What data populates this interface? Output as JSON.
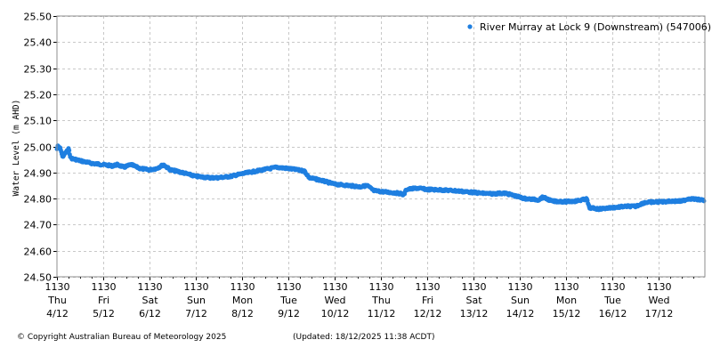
{
  "chart_data": {
    "type": "scatter",
    "title": "",
    "xlabel": "",
    "ylabel": "Water Level (m AHD)",
    "ylim": [
      24.5,
      25.5
    ],
    "yticks": [
      "25.50",
      "25.40",
      "25.30",
      "25.20",
      "25.10",
      "25.00",
      "24.90",
      "24.80",
      "24.70",
      "24.60",
      "24.50"
    ],
    "grid": true,
    "legend_position": "top-right",
    "x_ticks": [
      {
        "time": "1130",
        "day": "Thu",
        "date": "4/12"
      },
      {
        "time": "1130",
        "day": "Fri",
        "date": "5/12"
      },
      {
        "time": "1130",
        "day": "Sat",
        "date": "6/12"
      },
      {
        "time": "1130",
        "day": "Sun",
        "date": "7/12"
      },
      {
        "time": "1130",
        "day": "Mon",
        "date": "8/12"
      },
      {
        "time": "1130",
        "day": "Tue",
        "date": "9/12"
      },
      {
        "time": "1130",
        "day": "Wed",
        "date": "10/12"
      },
      {
        "time": "1130",
        "day": "Thu",
        "date": "11/12"
      },
      {
        "time": "1130",
        "day": "Fri",
        "date": "12/12"
      },
      {
        "time": "1130",
        "day": "Sat",
        "date": "13/12"
      },
      {
        "time": "1130",
        "day": "Sun",
        "date": "14/12"
      },
      {
        "time": "1130",
        "day": "Mon",
        "date": "15/12"
      },
      {
        "time": "1130",
        "day": "Tue",
        "date": "16/12"
      },
      {
        "time": "1130",
        "day": "Wed",
        "date": "17/12"
      }
    ],
    "series": [
      {
        "name": "River Murray at Lock 9 (Downstream) (547006)",
        "color": "#1f7fe0",
        "x_unit": "days since Thu 4/12 11:30",
        "points": [
          [
            0.0,
            24.99
          ],
          [
            0.02,
            25.0
          ],
          [
            0.08,
            24.99
          ],
          [
            0.12,
            24.96
          ],
          [
            0.25,
            24.99
          ],
          [
            0.3,
            24.955
          ],
          [
            0.5,
            24.945
          ],
          [
            0.75,
            24.935
          ],
          [
            1.0,
            24.93
          ],
          [
            1.2,
            24.925
          ],
          [
            1.3,
            24.93
          ],
          [
            1.45,
            24.92
          ],
          [
            1.6,
            24.93
          ],
          [
            1.8,
            24.915
          ],
          [
            2.0,
            24.91
          ],
          [
            2.15,
            24.915
          ],
          [
            2.3,
            24.93
          ],
          [
            2.45,
            24.91
          ],
          [
            2.7,
            24.9
          ],
          [
            3.0,
            24.885
          ],
          [
            3.3,
            24.88
          ],
          [
            3.5,
            24.88
          ],
          [
            3.75,
            24.885
          ],
          [
            4.0,
            24.895
          ],
          [
            4.3,
            24.905
          ],
          [
            4.6,
            24.915
          ],
          [
            4.75,
            24.92
          ],
          [
            5.0,
            24.915
          ],
          [
            5.2,
            24.91
          ],
          [
            5.35,
            24.905
          ],
          [
            5.45,
            24.88
          ],
          [
            5.7,
            24.87
          ],
          [
            6.0,
            24.855
          ],
          [
            6.3,
            24.85
          ],
          [
            6.55,
            24.845
          ],
          [
            6.7,
            24.85
          ],
          [
            6.85,
            24.83
          ],
          [
            7.1,
            24.825
          ],
          [
            7.4,
            24.82
          ],
          [
            7.5,
            24.815
          ],
          [
            7.55,
            24.835
          ],
          [
            7.8,
            24.84
          ],
          [
            8.0,
            24.835
          ],
          [
            8.3,
            24.833
          ],
          [
            8.6,
            24.83
          ],
          [
            8.9,
            24.825
          ],
          [
            9.2,
            24.82
          ],
          [
            9.4,
            24.818
          ],
          [
            9.55,
            24.82
          ],
          [
            9.7,
            24.82
          ],
          [
            9.9,
            24.81
          ],
          [
            10.1,
            24.8
          ],
          [
            10.4,
            24.795
          ],
          [
            10.5,
            24.805
          ],
          [
            10.7,
            24.79
          ],
          [
            11.0,
            24.788
          ],
          [
            11.2,
            24.79
          ],
          [
            11.35,
            24.795
          ],
          [
            11.45,
            24.798
          ],
          [
            11.5,
            24.765
          ],
          [
            11.7,
            24.76
          ],
          [
            12.0,
            24.765
          ],
          [
            12.3,
            24.77
          ],
          [
            12.5,
            24.77
          ],
          [
            12.7,
            24.785
          ],
          [
            13.0,
            24.787
          ],
          [
            13.3,
            24.79
          ],
          [
            13.5,
            24.79
          ],
          [
            13.65,
            24.8
          ],
          [
            13.9,
            24.795
          ],
          [
            14.2,
            24.79
          ],
          [
            14.5,
            24.788
          ],
          [
            14.6,
            24.786
          ]
        ]
      }
    ]
  },
  "legend": {
    "label": "River Murray at Lock 9 (Downstream) (547006)",
    "marker_color": "#1f7fe0"
  },
  "footer": {
    "copyright": "© Copyright Australian Bureau of Meteorology 2025",
    "updated": "(Updated: 18/12/2025 11:38 ACDT)"
  }
}
